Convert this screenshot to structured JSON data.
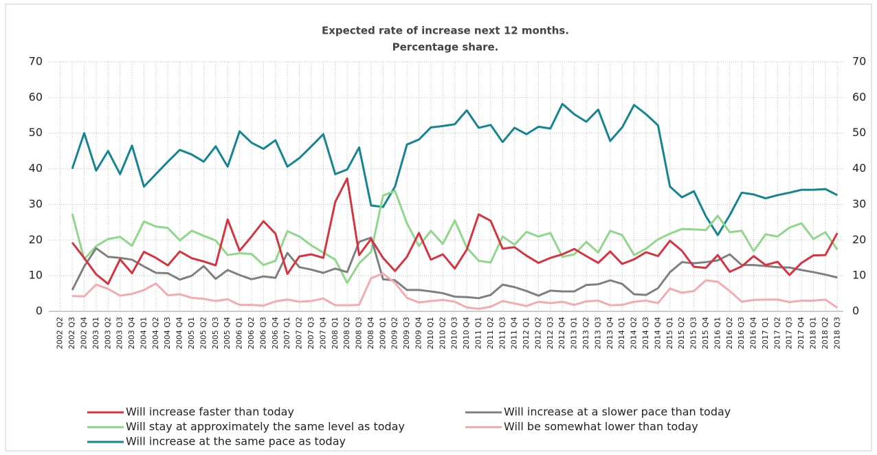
{
  "chart_data": {
    "type": "line",
    "title": "Expected rate of increase  next 12 months.",
    "subtitle": "Percentage share.",
    "categories": [
      "2002 Q2",
      "2002 Q3",
      "2002 Q4",
      "2003 Q1",
      "2003 Q2",
      "2003 Q3",
      "2003 Q4",
      "2004 Q1",
      "2004 Q2",
      "2004 Q3",
      "2004 Q4",
      "2005 Q1",
      "2005 Q2",
      "2005 Q3",
      "2005 Q4",
      "2006 Q1",
      "2006 Q2",
      "2006 Q3",
      "2006 Q4",
      "2007 Q1",
      "2007 Q2",
      "2007 Q3",
      "2007 Q4",
      "2008 Q1",
      "2008 Q2",
      "2008 Q3",
      "2008 Q4",
      "2009 Q1",
      "2009 Q2",
      "2009 Q3",
      "2009 Q4",
      "2010 Q1",
      "2010 Q2",
      "2010 Q3",
      "2010 Q4",
      "2011 Q1",
      "2011 Q2",
      "2011 Q3",
      "2011 Q4",
      "2012 Q1",
      "2012 Q2",
      "2012 Q3",
      "2012 Q4",
      "2013 Q1",
      "2013 Q2",
      "2013 Q3",
      "2013 Q4",
      "2014 Q1",
      "2014 Q2",
      "2014 Q3",
      "2014 Q4",
      "2015 Q1",
      "2015 Q2",
      "2015 Q3",
      "2015 Q4",
      "2016 Q1",
      "2016 Q2",
      "2016 Q3",
      "2016 Q4",
      "2017 Q1",
      "2017 Q2",
      "2017 Q3",
      "2017 Q4",
      "2018 Q1",
      "2018 Q2",
      "2018 Q3"
    ],
    "series": [
      {
        "name": "Will increase faster than today",
        "color": "#d9323f",
        "values": [
          null,
          19.3,
          15,
          10.4,
          7.7,
          14.6,
          10.7,
          16.7,
          15,
          12.9,
          16.8,
          14.9,
          14,
          12.9,
          25.8,
          17,
          21,
          25.3,
          21.8,
          10.5,
          15.4,
          16,
          15,
          30.7,
          37.3,
          15.8,
          20.3,
          15,
          11.3,
          15.3,
          22,
          14.5,
          16,
          12,
          17.3,
          27.2,
          25.4,
          17.6,
          18,
          15.6,
          13.6,
          15,
          16,
          17.5,
          15.5,
          13.6,
          16.8,
          13.3,
          14.6,
          16.6,
          15.5,
          19.8,
          17,
          12.5,
          12.2,
          15.8,
          11.1,
          12.6,
          15.5,
          13,
          13.9,
          10.2,
          13.6,
          15.7,
          15.8,
          22
        ]
      },
      {
        "name": "Will increase at a slower pace than today",
        "color": "#7f7f7f",
        "values": [
          null,
          6,
          12.6,
          17.7,
          15.3,
          15,
          14.5,
          12.6,
          10.8,
          10.7,
          8.9,
          10,
          12.7,
          9.1,
          11.6,
          10.2,
          9,
          9.8,
          9.4,
          16.4,
          12.4,
          11.7,
          10.8,
          12,
          11,
          19.5,
          20.7,
          9,
          8.7,
          6,
          6,
          5.6,
          5.1,
          4.1,
          4,
          3.7,
          4.6,
          7.5,
          6.8,
          5.7,
          4.4,
          5.8,
          5.6,
          5.6,
          7.4,
          7.6,
          8.7,
          7.7,
          4.8,
          4.6,
          6.5,
          11,
          13.8,
          13.5,
          13.8,
          14.3,
          16,
          13,
          13,
          12.7,
          12.4,
          12.3,
          11.6,
          11,
          10.3,
          9.5
        ]
      },
      {
        "name": "Will stay at approximately the same level as today",
        "color": "#8fd88a",
        "values": [
          null,
          27.4,
          14.6,
          18.3,
          20.3,
          20.9,
          18.4,
          25.2,
          23.8,
          23.4,
          19.9,
          22.6,
          21.2,
          19.9,
          15.8,
          16.3,
          16.1,
          13,
          14.2,
          22.5,
          21,
          18.5,
          16.5,
          14.5,
          8,
          13.5,
          16.7,
          32.5,
          33.8,
          24.7,
          18.3,
          22.6,
          18.9,
          25.5,
          17.9,
          14.2,
          13.7,
          21,
          18.7,
          22.3,
          21,
          22,
          15.3,
          16,
          19.5,
          16.5,
          22.6,
          21.4,
          15.8,
          17.6,
          20.2,
          21.8,
          23.1,
          23,
          22.8,
          26.8,
          22.2,
          22.6,
          16.9,
          21.6,
          21,
          23.5,
          24.7,
          20.3,
          22.2,
          17.3
        ]
      },
      {
        "name": "Will be somewhat lower than today",
        "color": "#f4aab0",
        "values": [
          null,
          4.3,
          4.2,
          7.5,
          6.3,
          4.4,
          4.9,
          6,
          7.8,
          4.5,
          4.8,
          3.8,
          3.5,
          2.9,
          3.4,
          1.8,
          1.8,
          1.6,
          2.8,
          3.3,
          2.7,
          2.9,
          3.6,
          1.7,
          1.7,
          1.8,
          9.3,
          10.6,
          8,
          3.8,
          2.5,
          2.9,
          3.2,
          2.7,
          1.1,
          0.7,
          1.3,
          2.9,
          2.2,
          1.5,
          2.7,
          2.3,
          2.7,
          1.8,
          2.8,
          3,
          1.7,
          1.8,
          2.7,
          3,
          2.3,
          6.4,
          5.2,
          5.7,
          8.7,
          8.3,
          5.7,
          2.7,
          3.2,
          3.3,
          3.3,
          2.6,
          3,
          3,
          3.3,
          1
        ]
      },
      {
        "name": "Will increase at the same pace as today",
        "color": "#138591",
        "values": [
          null,
          40,
          50,
          39.5,
          45,
          38.5,
          46.5,
          35,
          38.5,
          42,
          45.3,
          44,
          42,
          46.3,
          40.6,
          50.5,
          47.3,
          45.6,
          48,
          40.6,
          43,
          46.3,
          49.7,
          38.5,
          39.8,
          46,
          29.7,
          29.3,
          35,
          46.8,
          48.2,
          51.6,
          52,
          52.5,
          56.4,
          51.5,
          52.3,
          47.5,
          51.5,
          49.7,
          51.8,
          51.3,
          58.2,
          55.3,
          53.2,
          56.6,
          47.8,
          51.6,
          57.9,
          55.3,
          52.2,
          35,
          32,
          33.7,
          26.7,
          21.4,
          27,
          33.3,
          32.8,
          31.7,
          32.6,
          33.3,
          34.1,
          34.1,
          34.3,
          32.6
        ]
      }
    ],
    "ylim": [
      0,
      70
    ],
    "yticks": [
      0,
      10,
      20,
      30,
      40,
      50,
      60,
      70
    ],
    "y2lim": [
      0,
      70
    ],
    "y2ticks": [
      0,
      10,
      20,
      30,
      40,
      50,
      60,
      70
    ],
    "grid": true,
    "legend": "bottom"
  }
}
